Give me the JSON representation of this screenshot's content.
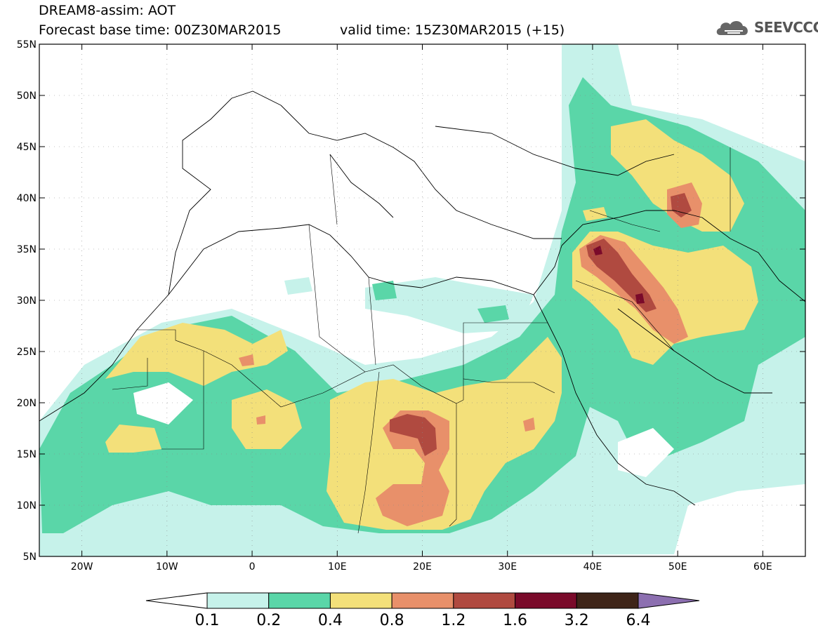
{
  "header": {
    "title": "DREAM8-assim: AOT",
    "base_time": "Forecast base time: 00Z30MAR2015",
    "valid_time": "valid time: 15Z30MAR2015 (+15)",
    "logo_text": "SEEVCCC",
    "logo_icon": "cloud-logo-icon"
  },
  "map": {
    "lon_labels": [
      "20W",
      "10W",
      "0",
      "10E",
      "20E",
      "30E",
      "40E",
      "50E",
      "60E"
    ],
    "lat_labels": [
      "55N",
      "50N",
      "45N",
      "40N",
      "35N",
      "30N",
      "25N",
      "20N",
      "15N",
      "10N",
      "5N"
    ],
    "lon_range": [
      -25,
      65
    ],
    "lat_range": [
      5,
      55
    ]
  },
  "colorbar": {
    "levels": [
      "0.1",
      "0.2",
      "0.4",
      "0.8",
      "1.2",
      "1.6",
      "3.2",
      "6.4"
    ],
    "colors": [
      "#ffffff",
      "#c6f2ea",
      "#5ad6a8",
      "#f3e07a",
      "#e8906a",
      "#b04a40",
      "#7a0a2a",
      "#3e2418",
      "#8c6fb0"
    ]
  }
}
